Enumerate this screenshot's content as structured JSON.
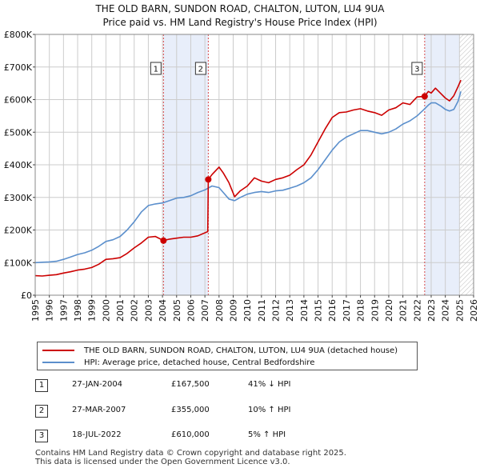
{
  "title": "THE OLD BARN, SUNDON ROAD, CHALTON, LUTON, LU4 9UA",
  "subtitle": "Price paid vs. HM Land Registry's House Price Index (HPI)",
  "colors": {
    "property": "#cc0000",
    "hpi": "#5b8fcc",
    "shade": "#e8eefa",
    "grid": "#cccccc",
    "marker_line": "#cc0000"
  },
  "legend": {
    "property_label": "THE OLD BARN, SUNDON ROAD, CHALTON, LUTON, LU4 9UA (detached house)",
    "hpi_label": "HPI: Average price, detached house, Central Bedfordshire"
  },
  "transactions": [
    {
      "num": "1",
      "date": "27-JAN-2004",
      "price": "£167,500",
      "hpi": "41% ↓ HPI"
    },
    {
      "num": "2",
      "date": "27-MAR-2007",
      "price": "£355,000",
      "hpi": "10% ↑ HPI"
    },
    {
      "num": "3",
      "date": "18-JUL-2022",
      "price": "£610,000",
      "hpi": "5% ↑ HPI"
    }
  ],
  "footer": {
    "line1": "Contains HM Land Registry data © Crown copyright and database right 2025.",
    "line2": "This data is licensed under the Open Government Licence v3.0."
  },
  "chart_data": {
    "type": "line",
    "title": "THE OLD BARN, SUNDON ROAD, CHALTON, LUTON, LU4 9UA",
    "subtitle": "Price paid vs. HM Land Registry's House Price Index (HPI)",
    "xlabel": "",
    "ylabel": "",
    "xlim": [
      1995,
      2026
    ],
    "ylim": [
      0,
      800000
    ],
    "x_ticks": [
      1995,
      1996,
      1997,
      1998,
      1999,
      2000,
      2001,
      2002,
      2003,
      2004,
      2005,
      2006,
      2007,
      2008,
      2009,
      2010,
      2011,
      2012,
      2013,
      2014,
      2015,
      2016,
      2017,
      2018,
      2019,
      2020,
      2021,
      2022,
      2023,
      2024,
      2025,
      2026
    ],
    "y_ticks": [
      {
        "value": 0,
        "label": "£0"
      },
      {
        "value": 100000,
        "label": "£100K"
      },
      {
        "value": 200000,
        "label": "£200K"
      },
      {
        "value": 300000,
        "label": "£300K"
      },
      {
        "value": 400000,
        "label": "£400K"
      },
      {
        "value": 500000,
        "label": "£500K"
      },
      {
        "value": 600000,
        "label": "£600K"
      },
      {
        "value": 700000,
        "label": "£700K"
      },
      {
        "value": 800000,
        "label": "£800K"
      }
    ],
    "grid": true,
    "shaded_ranges": [
      [
        2004.07,
        2007.24
      ],
      [
        2022.54,
        2025.0
      ]
    ],
    "hatched_range": [
      2025.0,
      2026
    ],
    "markers": [
      {
        "label": "1",
        "x": 2004.07,
        "y": 167500
      },
      {
        "label": "2",
        "x": 2007.24,
        "y": 355000
      },
      {
        "label": "3",
        "x": 2022.54,
        "y": 610000
      }
    ],
    "series": [
      {
        "name": "THE OLD BARN, SUNDON ROAD, CHALTON, LUTON, LU4 9UA (detached house)",
        "x": [
          1995,
          1995.5,
          1996,
          1996.5,
          1997,
          1997.5,
          1998,
          1998.5,
          1999,
          1999.5,
          2000,
          2000.5,
          2001,
          2001.5,
          2002,
          2002.5,
          2003,
          2003.5,
          2004.07,
          2004.5,
          2005,
          2005.5,
          2006,
          2006.5,
          2007.2,
          2007.24,
          2007.5,
          2008,
          2008.3,
          2008.7,
          2009.1,
          2009.5,
          2010,
          2010.5,
          2011,
          2011.5,
          2012,
          2012.5,
          2013,
          2013.5,
          2014,
          2014.5,
          2015,
          2015.5,
          2016,
          2016.5,
          2017,
          2017.5,
          2018,
          2018.5,
          2019,
          2019.5,
          2020,
          2020.5,
          2021,
          2021.5,
          2022,
          2022.54,
          2022.8,
          2023,
          2023.3,
          2023.7,
          2024,
          2024.3,
          2024.6,
          2024.9,
          2025.1
        ],
        "y": [
          60000,
          59000,
          61000,
          63000,
          68000,
          72000,
          77000,
          80000,
          85000,
          95000,
          110000,
          112000,
          115000,
          128000,
          145000,
          160000,
          178000,
          180000,
          167500,
          172000,
          175000,
          178000,
          178000,
          182000,
          195000,
          355000,
          370000,
          393000,
          375000,
          345000,
          302000,
          320000,
          335000,
          360000,
          350000,
          345000,
          355000,
          360000,
          368000,
          385000,
          400000,
          430000,
          470000,
          510000,
          545000,
          560000,
          562000,
          568000,
          572000,
          565000,
          560000,
          552000,
          568000,
          575000,
          590000,
          585000,
          608000,
          610000,
          625000,
          620000,
          635000,
          618000,
          605000,
          596000,
          612000,
          640000,
          660000
        ]
      },
      {
        "name": "HPI: Average price, detached house, Central Bedfordshire",
        "x": [
          1995,
          1995.5,
          1996,
          1996.5,
          1997,
          1997.5,
          1998,
          1998.5,
          1999,
          1999.5,
          2000,
          2000.5,
          2001,
          2001.5,
          2002,
          2002.5,
          2003,
          2003.5,
          2004,
          2004.5,
          2005,
          2005.5,
          2006,
          2006.5,
          2007,
          2007.5,
          2008,
          2008.3,
          2008.7,
          2009.1,
          2009.5,
          2010,
          2010.5,
          2011,
          2011.5,
          2012,
          2012.5,
          2013,
          2013.5,
          2014,
          2014.5,
          2015,
          2015.5,
          2016,
          2016.5,
          2017,
          2017.5,
          2018,
          2018.5,
          2019,
          2019.5,
          2020,
          2020.5,
          2021,
          2021.5,
          2022,
          2022.5,
          2022.8,
          2023,
          2023.3,
          2023.7,
          2024,
          2024.3,
          2024.6,
          2024.9,
          2025.1
        ],
        "y": [
          100000,
          101000,
          102000,
          104000,
          110000,
          117000,
          125000,
          130000,
          138000,
          150000,
          165000,
          170000,
          180000,
          200000,
          225000,
          255000,
          275000,
          280000,
          283000,
          290000,
          298000,
          300000,
          305000,
          315000,
          323000,
          335000,
          330000,
          315000,
          295000,
          290000,
          300000,
          310000,
          315000,
          318000,
          315000,
          320000,
          322000,
          328000,
          335000,
          345000,
          360000,
          385000,
          415000,
          445000,
          470000,
          485000,
          495000,
          505000,
          505000,
          500000,
          495000,
          500000,
          510000,
          525000,
          535000,
          550000,
          570000,
          583000,
          590000,
          590000,
          580000,
          570000,
          565000,
          570000,
          595000,
          625000
        ]
      }
    ]
  }
}
